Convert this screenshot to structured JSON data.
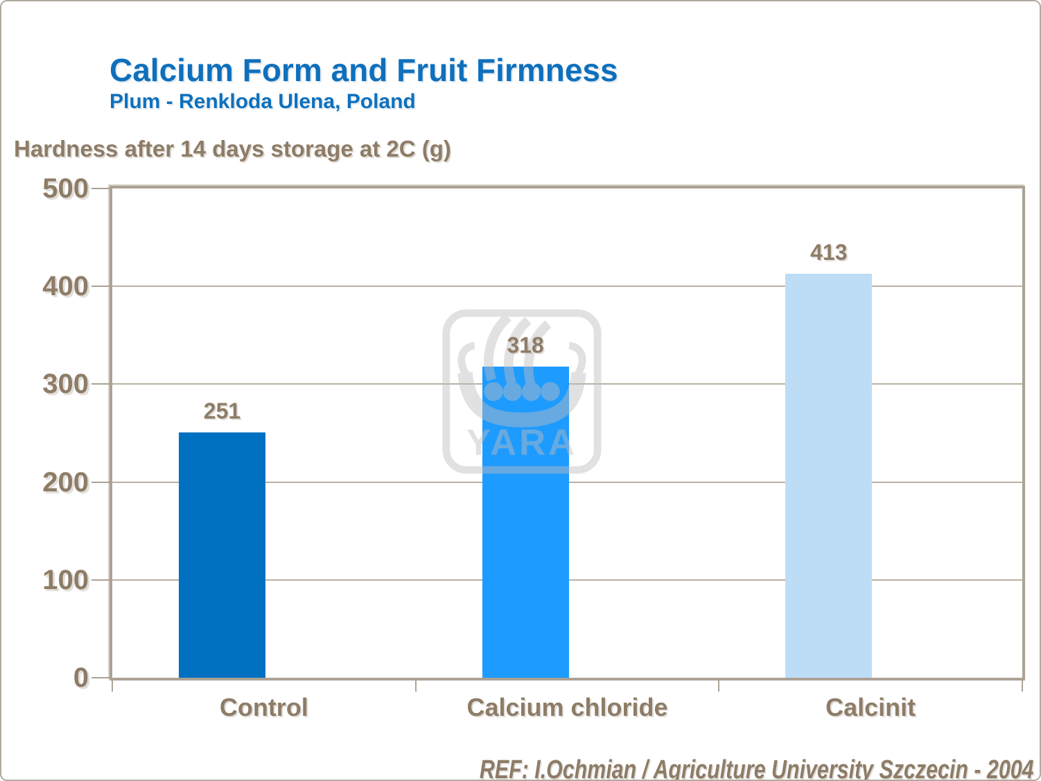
{
  "header": {
    "title": "Calcium Form and Fruit Firmness",
    "subtitle": "Plum - Renkloda Ulena, Poland"
  },
  "chart_data": {
    "type": "bar",
    "title": "Calcium Form and Fruit Firmness",
    "subtitle": "Plum - Renkloda Ulena, Poland",
    "ylabel": "Hardness after 14 days storage at 2C (g)",
    "xlabel": "",
    "categories": [
      "Control",
      "Calcium chloride",
      "Calcinit"
    ],
    "values": [
      251,
      318,
      413
    ],
    "value_labels": [
      "251",
      "318",
      "413"
    ],
    "bar_colors": [
      "#0070c0",
      "#1e9bff",
      "#bdddf7"
    ],
    "ylim": [
      0,
      500
    ],
    "yticks": [
      0,
      100,
      200,
      300,
      400,
      500
    ],
    "grid": true,
    "legend": false
  },
  "watermark": {
    "label": "YARA"
  },
  "footer": {
    "ref": "REF: I.Ochmian / Agriculture University Szczecin - 2004"
  },
  "colors": {
    "title_blue": "#0e70bd",
    "text_brown": "#8d7c67",
    "axis_line": "#aca294",
    "gridline": "#b9b0a3",
    "frame": "#b3aaa0",
    "watermark_gray": "#bdbdbd"
  }
}
